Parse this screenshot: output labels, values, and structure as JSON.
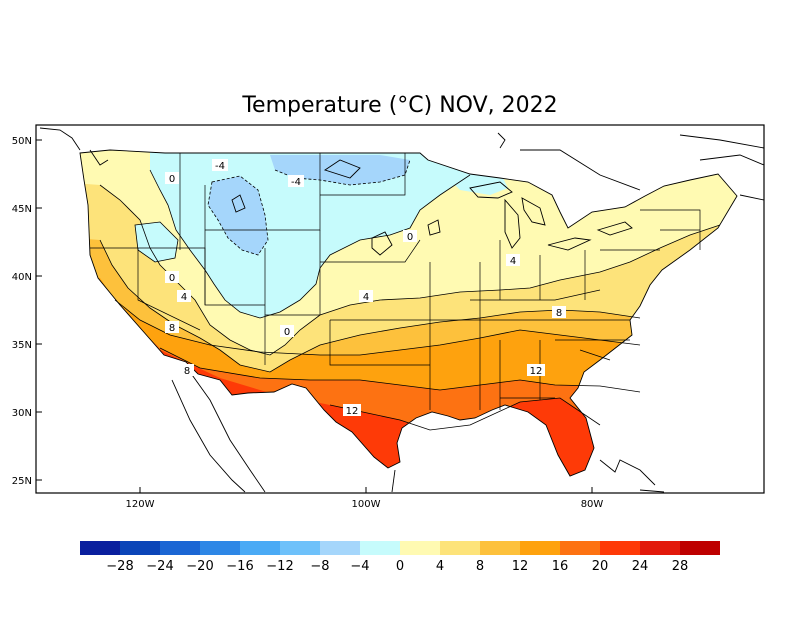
{
  "title": "Temperature (°C) NOV, 2022",
  "y_ticks": [
    "50N",
    "45N",
    "40N",
    "35N",
    "30N",
    "25N"
  ],
  "x_ticks": [
    "120W",
    "100W",
    "80W"
  ],
  "contour_labels": [
    "-4",
    "-4",
    "0",
    "0",
    "0",
    "0",
    "4",
    "4",
    "4",
    "8",
    "8",
    "8",
    "12",
    "12"
  ],
  "legend": {
    "colors": [
      "#0a1f9e",
      "#0b45b8",
      "#1b66d4",
      "#2e87e6",
      "#4aaaf5",
      "#6ec1fa",
      "#a5d6fb",
      "#c6fbfc",
      "#fffab2",
      "#fde37a",
      "#fdc13c",
      "#fea20e",
      "#fd7212",
      "#fe3a07",
      "#e2190b",
      "#be0000"
    ],
    "labels": [
      "−28",
      "−24",
      "−20",
      "−16",
      "−12",
      "−8",
      "−4",
      "0",
      "4",
      "8",
      "12",
      "16",
      "20",
      "24",
      "28"
    ]
  }
}
